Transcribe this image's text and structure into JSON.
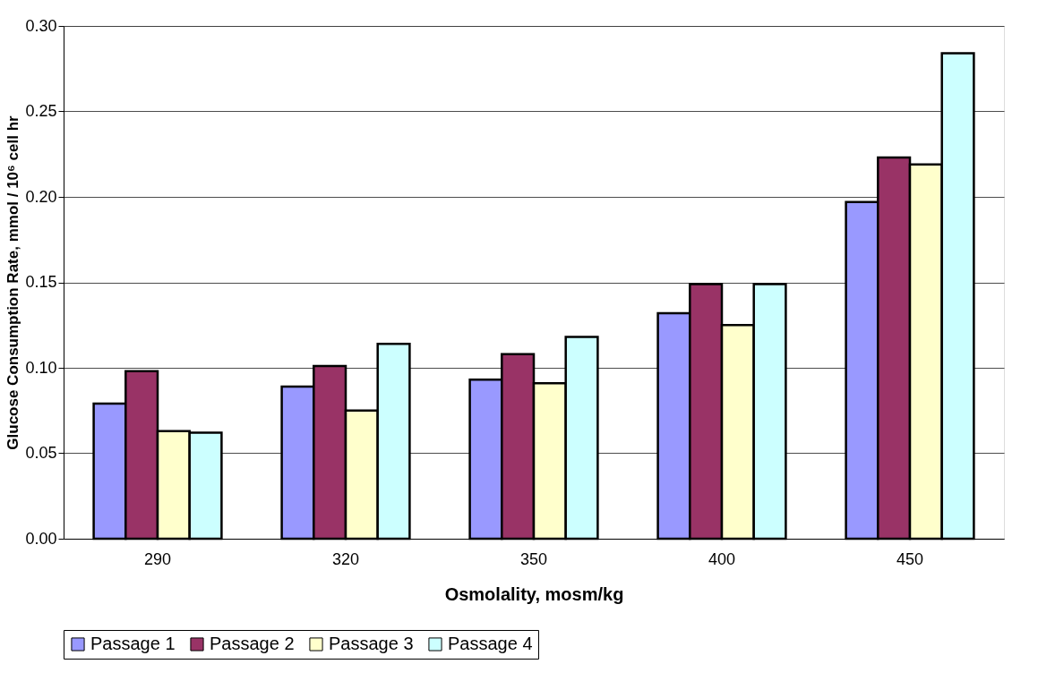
{
  "chart_data": {
    "type": "bar",
    "xlabel": "Osmolality, mosm/kg",
    "ylabel": "Glucose Consumption Rate, mmol / 10⁶ cell hr",
    "categories": [
      "290",
      "320",
      "350",
      "400",
      "450"
    ],
    "series": [
      {
        "name": "Passage 1",
        "color": "#9999ff",
        "values": [
          0.079,
          0.089,
          0.093,
          0.132,
          0.197
        ]
      },
      {
        "name": "Passage 2",
        "color": "#993366",
        "values": [
          0.098,
          0.101,
          0.108,
          0.149,
          0.223
        ]
      },
      {
        "name": "Passage 3",
        "color": "#ffffcc",
        "values": [
          0.063,
          0.075,
          0.091,
          0.125,
          0.219
        ]
      },
      {
        "name": "Passage 4",
        "color": "#ccffff",
        "values": [
          0.062,
          0.114,
          0.118,
          0.149,
          0.284
        ]
      }
    ],
    "ylim": [
      0,
      0.3
    ],
    "yticks": [
      {
        "value": 0,
        "label": "0.00"
      },
      {
        "value": 0.05,
        "label": "0.05"
      },
      {
        "value": 0.1,
        "label": "0.10"
      },
      {
        "value": 0.15,
        "label": "0.15"
      },
      {
        "value": 0.2,
        "label": "0.20"
      },
      {
        "value": 0.25,
        "label": "0.25"
      },
      {
        "value": 0.3,
        "label": "0.30"
      }
    ],
    "grid": "y",
    "legend": "bottom"
  }
}
